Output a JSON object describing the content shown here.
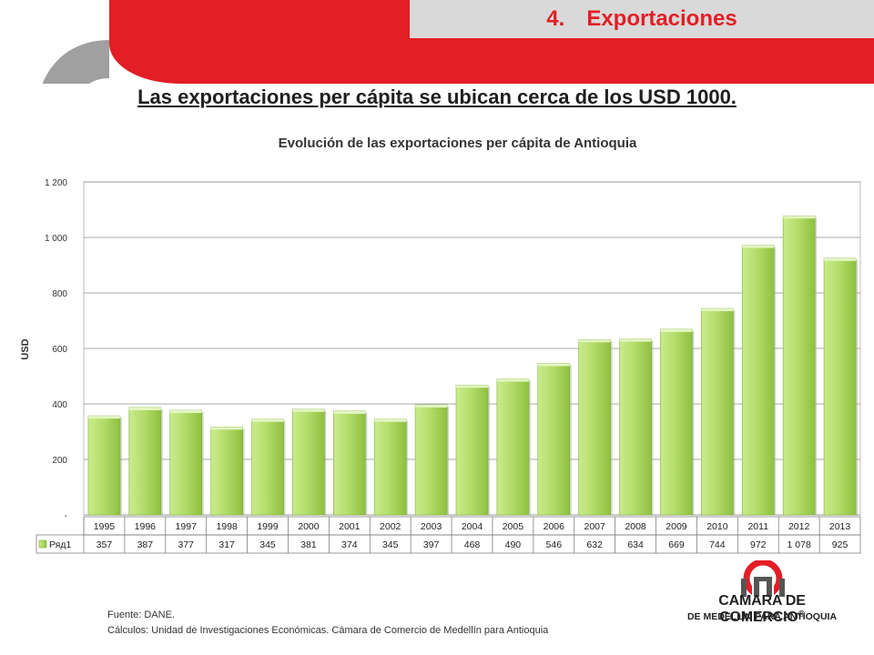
{
  "header": {
    "section_number": "4.",
    "section_title": "Exportaciones"
  },
  "headline": "Las exportaciones per cápita se ubican cerca de los USD 1000.",
  "chart_data": {
    "type": "bar",
    "title": "Evolución de las exportaciones per cápita de Antioquia",
    "ylabel": "USD",
    "xlabel": "",
    "ylim": [
      0,
      1200
    ],
    "yticks": [
      0,
      200,
      400,
      600,
      800,
      1000,
      1200
    ],
    "ytick_labels": [
      "-",
      "200",
      "400",
      "600",
      "800",
      "1 000",
      "1 200"
    ],
    "categories": [
      "1995",
      "1996",
      "1997",
      "1998",
      "1999",
      "2000",
      "2001",
      "2002",
      "2003",
      "2004",
      "2005",
      "2006",
      "2007",
      "2008",
      "2009",
      "2010",
      "2011",
      "2012",
      "2013"
    ],
    "series": [
      {
        "name": "Ряд1",
        "values": [
          357,
          387,
          377,
          317,
          345,
          381,
          374,
          345,
          397,
          468,
          490,
          546,
          632,
          634,
          669,
          744,
          972,
          1078,
          925
        ],
        "value_labels": [
          "357",
          "387",
          "377",
          "317",
          "345",
          "381",
          "374",
          "345",
          "397",
          "468",
          "490",
          "546",
          "632",
          "634",
          "669",
          "744",
          "972",
          "1 078",
          "925"
        ],
        "color": "#a6d35a"
      }
    ],
    "grid": true,
    "legend": "data-table"
  },
  "footnote": {
    "source": "Fuente: DANE.",
    "calc": "Cálculos: Unidad de Investigaciones Económicas. Cámara de Comercio de Medellín para Antioquia"
  },
  "logo": {
    "line1": "CAMARA DE COMERCIO",
    "registered": "®",
    "line2": "DE MEDELLIN PARA ANTIOQUIA"
  },
  "colors": {
    "brand_red": "#e31e26",
    "tab_gray": "#d9d9d9",
    "bar_green": "#a6d35a"
  }
}
